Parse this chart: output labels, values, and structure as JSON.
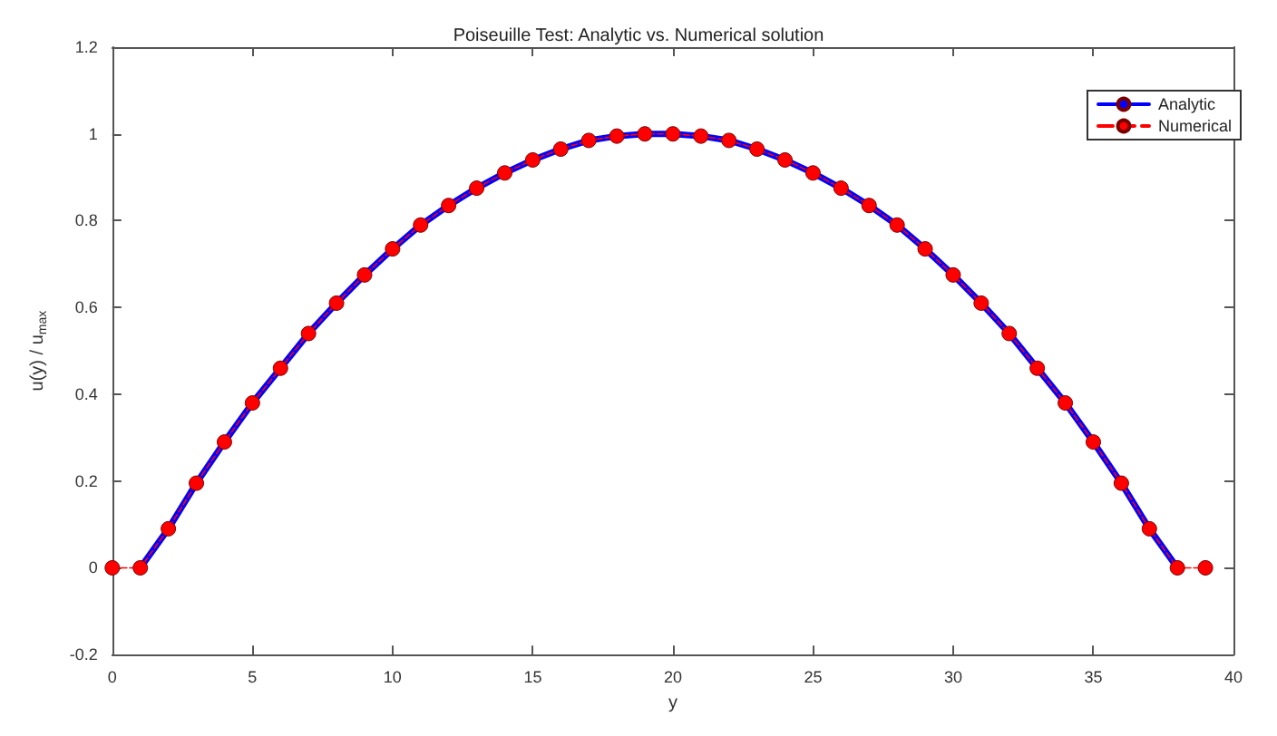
{
  "chart_data": {
    "type": "line",
    "title": "Poiseuille Test: Analytic vs. Numerical solution",
    "xlabel": "y",
    "ylabel": "u(y) / u$_{max}$",
    "xlim": [
      0,
      40
    ],
    "xticks": [
      0,
      5,
      10,
      15,
      20,
      25,
      30,
      35,
      40
    ],
    "ylim": [
      -0.2,
      1.2
    ],
    "yticks": [
      -0.2,
      0,
      0.2,
      0.4,
      0.6,
      0.8,
      1,
      1.2
    ],
    "grid": false,
    "legend": "top right",
    "series": [
      {
        "name": "Analytic",
        "color": "#0000ff",
        "marker": "none",
        "line_style": "solid",
        "x": [
          1,
          2,
          3,
          4,
          5,
          6,
          7,
          8,
          9,
          10,
          11,
          12,
          13,
          14,
          15,
          16,
          17,
          18,
          19,
          20,
          21,
          22,
          23,
          24,
          25,
          26,
          27,
          28,
          29,
          30,
          31,
          32,
          33,
          34,
          35,
          36,
          37,
          38
        ],
        "values": [
          0,
          0.09,
          0.195,
          0.29,
          0.38,
          0.46,
          0.54,
          0.61,
          0.675,
          0.735,
          0.79,
          0.835,
          0.875,
          0.91,
          0.94,
          0.965,
          0.985,
          0.995,
          1.0,
          1.0,
          0.995,
          0.985,
          0.965,
          0.94,
          0.91,
          0.875,
          0.835,
          0.79,
          0.735,
          0.675,
          0.61,
          0.54,
          0.46,
          0.38,
          0.29,
          0.195,
          0.09,
          0
        ]
      },
      {
        "name": "Numerical",
        "color": "#ff0000",
        "marker": "circle",
        "line_style": "dashed",
        "x": [
          0,
          1,
          2,
          3,
          4,
          5,
          6,
          7,
          8,
          9,
          10,
          11,
          12,
          13,
          14,
          15,
          16,
          17,
          18,
          19,
          20,
          21,
          22,
          23,
          24,
          25,
          26,
          27,
          28,
          29,
          30,
          31,
          32,
          33,
          34,
          35,
          36,
          37,
          38,
          39
        ],
        "values": [
          0,
          0,
          0.09,
          0.195,
          0.29,
          0.38,
          0.46,
          0.54,
          0.61,
          0.675,
          0.735,
          0.79,
          0.835,
          0.875,
          0.91,
          0.94,
          0.965,
          0.985,
          0.995,
          1.0,
          1.0,
          0.995,
          0.985,
          0.965,
          0.94,
          0.91,
          0.875,
          0.835,
          0.79,
          0.735,
          0.675,
          0.61,
          0.54,
          0.46,
          0.38,
          0.29,
          0.195,
          0.09,
          0,
          0
        ]
      }
    ]
  }
}
